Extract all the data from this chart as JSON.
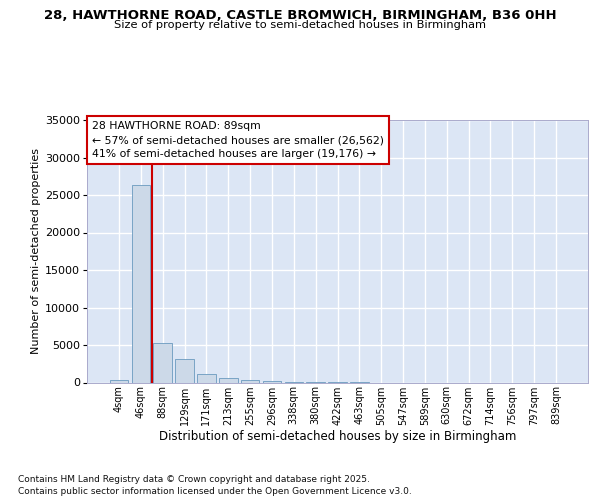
{
  "title_line1": "28, HAWTHORNE ROAD, CASTLE BROMWICH, BIRMINGHAM, B36 0HH",
  "title_line2": "Size of property relative to semi-detached houses in Birmingham",
  "xlabel": "Distribution of semi-detached houses by size in Birmingham",
  "ylabel": "Number of semi-detached properties",
  "footer_line1": "Contains HM Land Registry data © Crown copyright and database right 2025.",
  "footer_line2": "Contains public sector information licensed under the Open Government Licence v3.0.",
  "annotation_title": "28 HAWTHORNE ROAD: 89sqm",
  "annotation_line1": "← 57% of semi-detached houses are smaller (26,562)",
  "annotation_line2": "41% of semi-detached houses are larger (19,176) →",
  "bar_color": "#ccd9e8",
  "bar_edgecolor": "#6a9abf",
  "vline_color": "#cc0000",
  "background_color": "#dce6f5",
  "grid_color": "#ffffff",
  "categories": [
    "4sqm",
    "46sqm",
    "88sqm",
    "129sqm",
    "171sqm",
    "213sqm",
    "255sqm",
    "296sqm",
    "338sqm",
    "380sqm",
    "422sqm",
    "463sqm",
    "505sqm",
    "547sqm",
    "589sqm",
    "630sqm",
    "672sqm",
    "714sqm",
    "756sqm",
    "797sqm",
    "839sqm"
  ],
  "values": [
    400,
    26400,
    5300,
    3200,
    1200,
    550,
    350,
    150,
    20,
    5,
    2,
    1,
    0,
    0,
    0,
    0,
    0,
    0,
    0,
    0,
    0
  ],
  "ylim_max": 35000,
  "yticks": [
    0,
    5000,
    10000,
    15000,
    20000,
    25000,
    30000,
    35000
  ],
  "vline_x": 1.5
}
